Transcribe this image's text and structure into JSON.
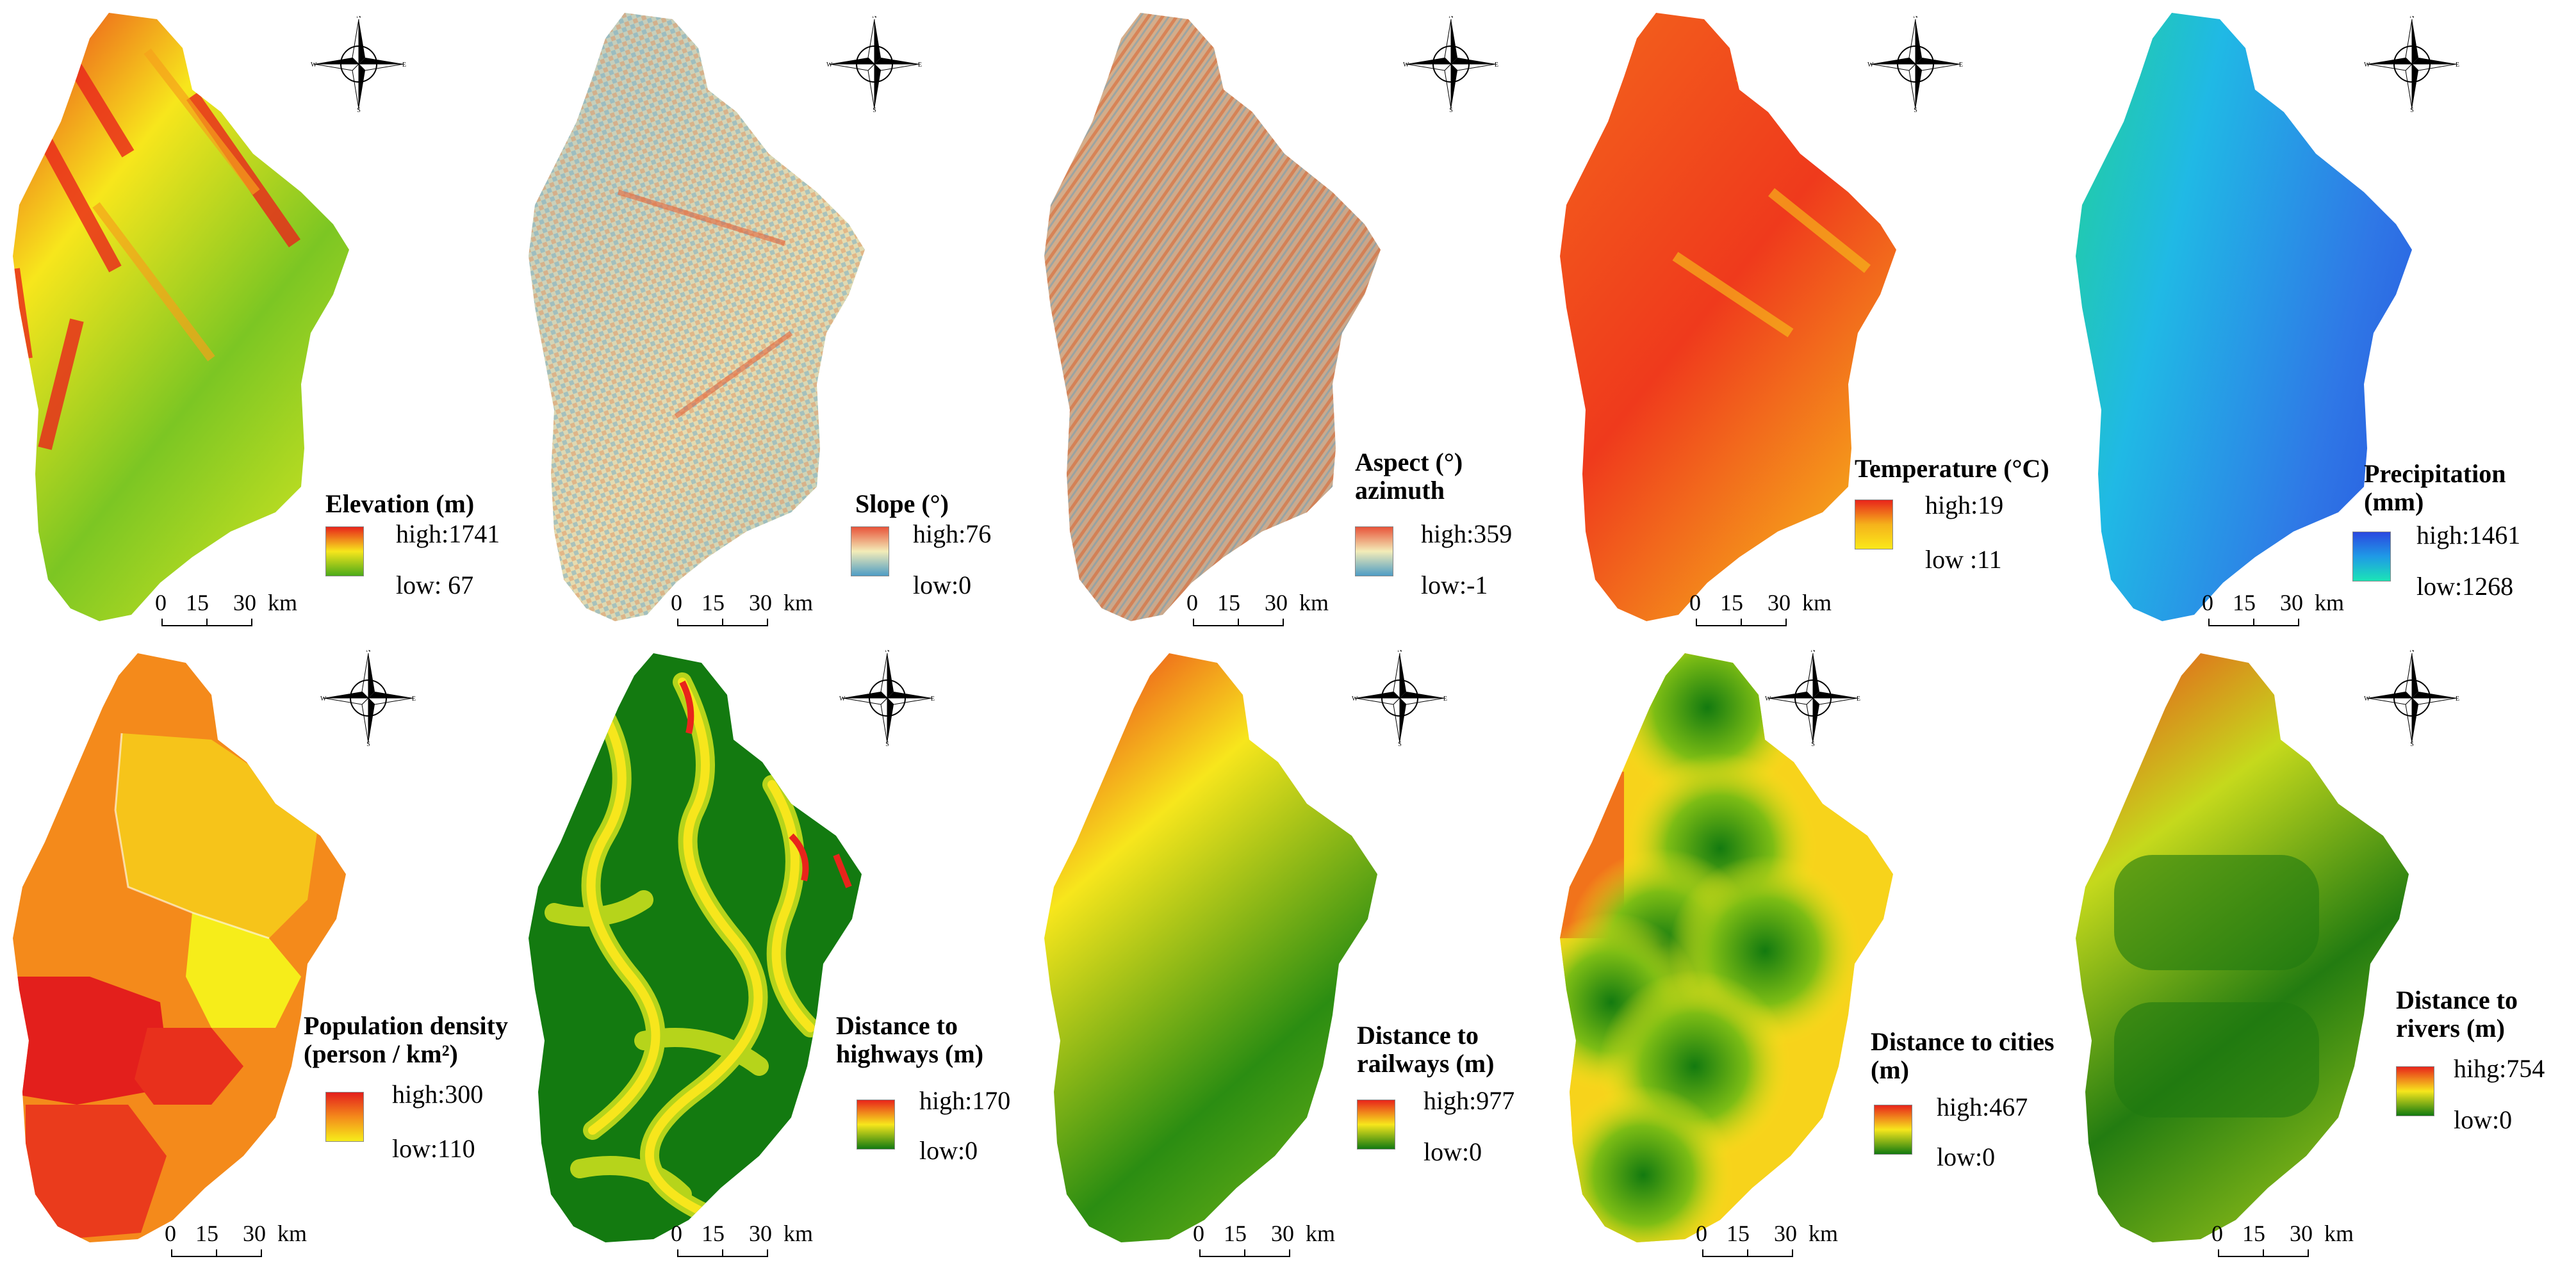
{
  "panels": [
    {
      "id": "elevation",
      "title": [
        "Elevation (m)"
      ],
      "high": "high:1741",
      "low": "low: 67",
      "ramp": [
        "#e8241b",
        "#f7e61c",
        "#4cab19"
      ]
    },
    {
      "id": "slope",
      "title": [
        "Slope (°)"
      ],
      "high": "high:76",
      "low": "low:0",
      "ramp": [
        "#e8543a",
        "#f3ecb8",
        "#4f9dc4"
      ]
    },
    {
      "id": "aspect",
      "title": [
        "Aspect (°)",
        "azimuth"
      ],
      "high": "high:359",
      "low": "low:-1",
      "ramp": [
        "#e8543a",
        "#f3ecb8",
        "#4f9dc4"
      ]
    },
    {
      "id": "temperature",
      "title": [
        "Temperature (°C)"
      ],
      "high": "high:19",
      "low": "low :11",
      "ramp": [
        "#e8241b",
        "#f5b21b",
        "#fbe81a"
      ]
    },
    {
      "id": "precipitation",
      "title": [
        "Precipitation",
        "(mm)"
      ],
      "high": "high:1461",
      "low": "low:1268",
      "ramp": [
        "#2b48e0",
        "#1f9ae6",
        "#1be4b6"
      ]
    },
    {
      "id": "population",
      "title": [
        "Population density",
        "(person / km²)"
      ],
      "high": "high:300",
      "low": "low:110",
      "ramp": [
        "#e31f1c",
        "#f48a1b",
        "#f6ed1a"
      ]
    },
    {
      "id": "highways",
      "title": [
        "Distance to",
        "highways (m)"
      ],
      "high": "high:170",
      "low": "low:0",
      "ramp": [
        "#e8241b",
        "#f7e61c",
        "#127a10"
      ]
    },
    {
      "id": "railways",
      "title": [
        "Distance to",
        "railways (m)"
      ],
      "high": "high:977",
      "low": "low:0",
      "ramp": [
        "#e8241b",
        "#f7e61c",
        "#127a10"
      ]
    },
    {
      "id": "cities",
      "title": [
        "Distance to cities",
        "(m)"
      ],
      "high": "high:467",
      "low": "low:0",
      "ramp": [
        "#e8241b",
        "#f7e61c",
        "#127a10"
      ]
    },
    {
      "id": "rivers",
      "title": [
        "Distance to",
        "rivers (m)"
      ],
      "high": "hihg:754",
      "low": "low:0",
      "ramp": [
        "#e8241b",
        "#f7e61c",
        "#127a10"
      ]
    }
  ],
  "scalebar": {
    "labels": [
      "0",
      "15",
      "30",
      "km"
    ]
  },
  "compass": {
    "n": "N",
    "e": "E",
    "s": "S",
    "w": "W"
  }
}
